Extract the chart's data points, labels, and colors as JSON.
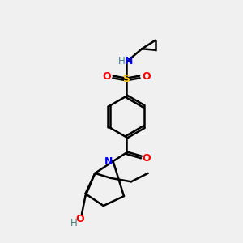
{
  "bg_color": "#f0f0f0",
  "atom_colors": {
    "C": "#000000",
    "N": "#0000ff",
    "O": "#ff0000",
    "S": "#ffcc00",
    "H": "#408080"
  },
  "bond_color": "#000000",
  "line_width": 1.8,
  "figsize": [
    3.0,
    3.0
  ],
  "dpi": 100
}
